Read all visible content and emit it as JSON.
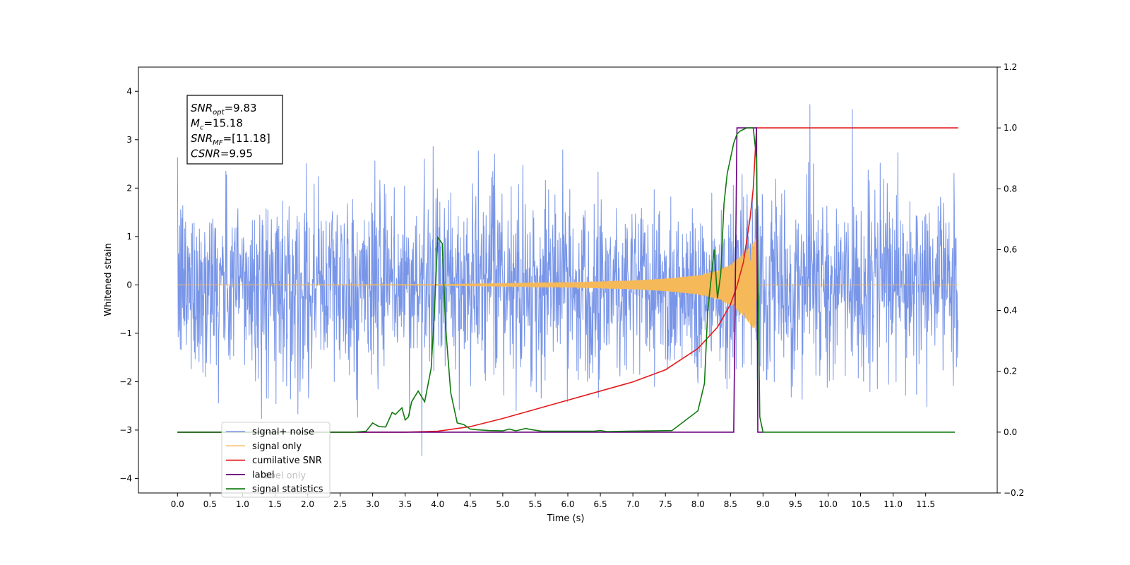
{
  "chart_data": {
    "type": "line",
    "xlabel": "Time (s)",
    "ylabel": "Whitened strain",
    "xlim": [
      -0.6,
      12.6
    ],
    "ylim": [
      -4.3,
      4.5
    ],
    "y2lim": [
      -0.2,
      1.2
    ],
    "x_ticks": [
      0.0,
      0.5,
      1.0,
      1.5,
      2.0,
      2.5,
      3.0,
      3.5,
      4.0,
      4.5,
      5.0,
      5.5,
      6.0,
      6.5,
      7.0,
      7.5,
      8.0,
      8.5,
      9.0,
      9.5,
      10.0,
      10.5,
      11.0,
      11.5
    ],
    "x_tick_labels": [
      "0.0",
      "0.5",
      "1.0",
      "1.5",
      "2.0",
      "2.5",
      "3.0",
      "3.5",
      "4.0",
      "4.5",
      "5.0",
      "5.5",
      "6.0",
      "6.5",
      "7.0",
      "7.5",
      "8.0",
      "8.5",
      "9.0",
      "9.5",
      "10.0",
      "10.5",
      "11.0",
      "11.5"
    ],
    "y_ticks": [
      -4,
      -3,
      -2,
      -1,
      0,
      1,
      2,
      3,
      4
    ],
    "y_tick_labels": [
      "−4",
      "−3",
      "−2",
      "−1",
      "0",
      "1",
      "2",
      "3",
      "4"
    ],
    "y2_ticks": [
      -0.2,
      0.0,
      0.2,
      0.4,
      0.6,
      0.8,
      1.0,
      1.2
    ],
    "y2_tick_labels": [
      "−0.2",
      "0.0",
      "0.2",
      "0.4",
      "0.6",
      "0.8",
      "1.0",
      "1.2"
    ],
    "grid": false,
    "legend_position": "bottom-left",
    "annotation": {
      "lines": [
        {
          "base": "SNR",
          "sub": "opt",
          "value": "=9.83"
        },
        {
          "base": "M",
          "sub": "c",
          "value": "=15.18"
        },
        {
          "base": "SNR",
          "sub": "MF",
          "value": "=[11.18]"
        },
        {
          "base": "CSNR",
          "sub": "",
          "value": "=9.95"
        }
      ]
    },
    "series": [
      {
        "name": "signal+ noise",
        "axis": "left",
        "color": "#7895e8",
        "kind": "noise",
        "x_range": [
          0.0,
          12.0
        ],
        "amplitude_typical": 2.2,
        "amplitude_peak": 4.1
      },
      {
        "name": "signal only",
        "axis": "left",
        "color": "#f5b95a",
        "kind": "chirp",
        "x_range": [
          0.0,
          12.0
        ],
        "chirp_end": 8.9,
        "envelope": {
          "x": [
            0.0,
            4.0,
            5.0,
            6.0,
            7.0,
            7.5,
            8.0,
            8.3,
            8.5,
            8.7,
            8.85,
            8.9
          ],
          "y": [
            0.0,
            0.01,
            0.03,
            0.05,
            0.09,
            0.13,
            0.2,
            0.3,
            0.42,
            0.65,
            0.9,
            1.0
          ]
        }
      },
      {
        "name": "cumilative SNR",
        "axis": "right",
        "color": "#e31a1c",
        "x": [
          0.0,
          3.5,
          4.0,
          4.5,
          5.0,
          5.5,
          6.0,
          6.5,
          7.0,
          7.5,
          8.0,
          8.3,
          8.5,
          8.6,
          8.7,
          8.8,
          8.85,
          8.9,
          9.0,
          12.0
        ],
        "values": [
          0.0,
          0.0,
          0.003,
          0.018,
          0.045,
          0.075,
          0.105,
          0.135,
          0.165,
          0.205,
          0.275,
          0.345,
          0.42,
          0.48,
          0.56,
          0.7,
          0.8,
          1.0,
          1.0,
          1.0
        ]
      },
      {
        "name": "label",
        "axis": "right",
        "color": "#6a0080",
        "x": [
          0.0,
          8.55,
          8.6,
          8.9,
          8.92,
          9.0
        ],
        "values": [
          0.0,
          0.0,
          1.0,
          1.0,
          0.0,
          0.0
        ]
      },
      {
        "name": "label only",
        "axis": "right",
        "color": "#6a0080",
        "x": [],
        "values": []
      },
      {
        "name": "signal statistics",
        "axis": "right",
        "color": "#107a10",
        "x": [
          0.0,
          2.7,
          2.9,
          3.0,
          3.1,
          3.2,
          3.3,
          3.35,
          3.45,
          3.5,
          3.55,
          3.6,
          3.7,
          3.8,
          3.9,
          3.95,
          4.0,
          4.07,
          4.12,
          4.2,
          4.3,
          4.4,
          4.5,
          4.6,
          4.8,
          5.0,
          5.1,
          5.2,
          5.35,
          5.45,
          5.6,
          6.4,
          6.5,
          6.6,
          7.6,
          8.0,
          8.1,
          8.15,
          8.25,
          8.3,
          8.35,
          8.4,
          8.45,
          8.55,
          8.6,
          8.65,
          8.75,
          8.85,
          8.9,
          8.95,
          9.0,
          11.95
        ],
        "values": [
          0.0,
          0.0,
          0.003,
          0.03,
          0.018,
          0.017,
          0.065,
          0.058,
          0.08,
          0.04,
          0.05,
          0.1,
          0.135,
          0.1,
          0.21,
          0.4,
          0.64,
          0.62,
          0.35,
          0.13,
          0.03,
          0.025,
          0.01,
          0.008,
          0.005,
          0.004,
          0.01,
          0.004,
          0.012,
          0.008,
          0.003,
          0.003,
          0.005,
          0.002,
          0.005,
          0.07,
          0.16,
          0.4,
          0.6,
          0.44,
          0.52,
          0.75,
          0.85,
          0.95,
          0.98,
          0.99,
          1.0,
          1.0,
          0.9,
          0.05,
          0.0,
          0.0
        ]
      }
    ]
  }
}
